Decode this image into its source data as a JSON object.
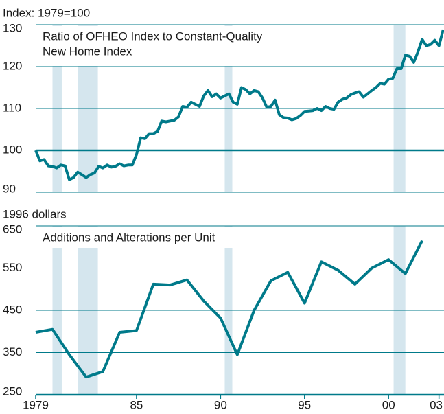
{
  "chart_data": [
    {
      "type": "line",
      "axis_label": "Index: 1979=100",
      "title": [
        "Ratio of OFHEO Index to Constant-Quality",
        "New Home Index"
      ],
      "x": [
        1979.0,
        1979.25,
        1979.5,
        1979.75,
        1980.0,
        1980.25,
        1980.5,
        1980.75,
        1981.0,
        1981.25,
        1981.5,
        1981.75,
        1982.0,
        1982.25,
        1982.5,
        1982.75,
        1983.0,
        1983.25,
        1983.5,
        1983.75,
        1984.0,
        1984.25,
        1984.5,
        1984.75,
        1985.0,
        1985.25,
        1985.5,
        1985.75,
        1986.0,
        1986.25,
        1986.5,
        1986.75,
        1987.0,
        1987.25,
        1987.5,
        1987.75,
        1988.0,
        1988.25,
        1988.5,
        1988.75,
        1989.0,
        1989.25,
        1989.5,
        1989.75,
        1990.0,
        1990.25,
        1990.5,
        1990.75,
        1991.0,
        1991.25,
        1991.5,
        1991.75,
        1992.0,
        1992.25,
        1992.5,
        1992.75,
        1993.0,
        1993.25,
        1993.5,
        1993.75,
        1994.0,
        1994.25,
        1994.5,
        1994.75,
        1995.0,
        1995.25,
        1995.5,
        1995.75,
        1996.0,
        1996.25,
        1996.5,
        1996.75,
        1997.0,
        1997.25,
        1997.5,
        1997.75,
        1998.0,
        1998.25,
        1998.5,
        1998.75,
        1999.0,
        1999.25,
        1999.5,
        1999.75,
        2000.0,
        2000.25,
        2000.5,
        2000.75,
        2001.0,
        2001.25,
        2001.5,
        2001.75,
        2002.0,
        2002.25,
        2002.5,
        2002.75,
        2003.0,
        2003.25
      ],
      "values": [
        100,
        97.5,
        97.8,
        96.3,
        96.2,
        95.8,
        96.5,
        96.3,
        93,
        93.5,
        94.8,
        94.2,
        93.5,
        94.2,
        94.6,
        96.2,
        95.8,
        96.5,
        96,
        96.2,
        96.8,
        96.3,
        96.5,
        96.5,
        99,
        103,
        102.8,
        104,
        104,
        104.5,
        107,
        106.8,
        107,
        107.2,
        108,
        110.5,
        110.3,
        111.5,
        111,
        110.5,
        113,
        114.3,
        112.8,
        113.5,
        112.5,
        113,
        113.5,
        111.5,
        111,
        115,
        114.5,
        113.5,
        114.3,
        114,
        112.5,
        110.3,
        110.5,
        112,
        108.5,
        107.8,
        107.7,
        107.3,
        107.6,
        108.3,
        109.3,
        109.4,
        109.5,
        110,
        109.5,
        110.5,
        110,
        109.8,
        111.5,
        112.2,
        112.5,
        113.3,
        113.7,
        114,
        112.7,
        113.5,
        114.3,
        115,
        116,
        115.8,
        117,
        117.2,
        119.5,
        119.5,
        122.7,
        122.5,
        121,
        123.5,
        126.5,
        125,
        125.3,
        126.3,
        125,
        128.8
      ],
      "color": "#007a8a",
      "shade_color": "#d5e6ee",
      "shaded_periods": [
        [
          1980.0,
          1980.55
        ],
        [
          1981.5,
          1982.7
        ],
        [
          1990.25,
          1990.7
        ],
        [
          2000.3,
          2001.0
        ]
      ],
      "xlim": [
        1979,
        2003.3
      ],
      "ylim": [
        90,
        130
      ],
      "yticks": [
        90,
        100,
        110,
        120,
        130
      ],
      "reference_line": 100,
      "grid": true
    },
    {
      "type": "line",
      "axis_label": "1996 dollars",
      "title": [
        "Additions and Alterations per Unit"
      ],
      "x": [
        1979,
        1980,
        1981,
        1982,
        1983,
        1984,
        1985,
        1986,
        1987,
        1988,
        1989,
        1990,
        1991,
        1992,
        1993,
        1994,
        1995,
        1996,
        1997,
        1998,
        1999,
        2000,
        2001,
        2002
      ],
      "values": [
        398,
        405,
        345,
        292,
        305,
        398,
        402,
        512,
        510,
        522,
        472,
        432,
        345,
        450,
        520,
        540,
        467,
        565,
        545,
        512,
        550,
        570,
        537,
        615
      ],
      "color": "#007a8a",
      "shade_color": "#d5e6ee",
      "shaded_periods": [
        [
          1980.0,
          1980.55
        ],
        [
          1981.5,
          1982.7
        ],
        [
          1990.25,
          1990.7
        ],
        [
          2000.3,
          2001.0
        ]
      ],
      "xlim": [
        1979,
        2003.3
      ],
      "ylim": [
        250,
        650
      ],
      "yticks": [
        250,
        350,
        450,
        550,
        650
      ],
      "xticks": [
        {
          "value": 1979,
          "label": "1979"
        },
        {
          "value": 1985,
          "label": "85"
        },
        {
          "value": 1990,
          "label": "90"
        },
        {
          "value": 1995,
          "label": "95"
        },
        {
          "value": 2000,
          "label": "00"
        },
        {
          "value": 2003,
          "label": "03"
        }
      ],
      "grid": true
    }
  ]
}
